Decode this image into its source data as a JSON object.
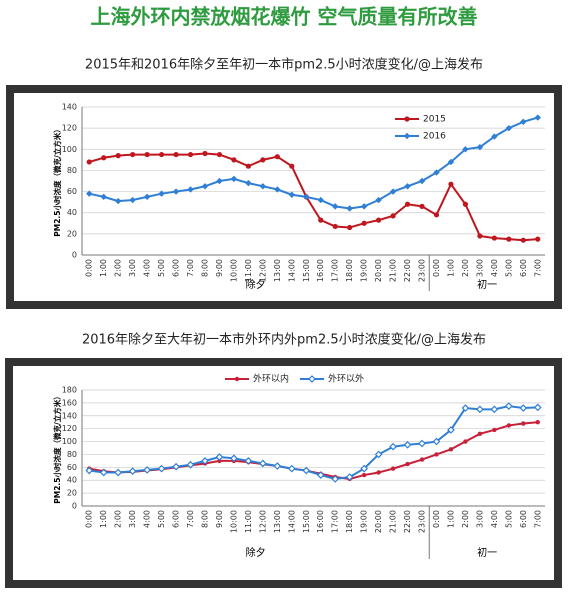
{
  "title": "上海外环内禁放烟花爆竹 空气质量有所改善",
  "chart_data": [
    {
      "type": "line",
      "title": "2015年和2016年除夕至年初一本市pm2.5小时浓度变化/@上海发布",
      "y_label": "PM2.5小时浓度（微克/立方米）",
      "categories": [
        "0:00",
        "1:00",
        "2:00",
        "3:00",
        "4:00",
        "5:00",
        "6:00",
        "7:00",
        "8:00",
        "9:00",
        "10:00",
        "11:00",
        "12:00",
        "13:00",
        "14:00",
        "15:00",
        "16:00",
        "17:00",
        "18:00",
        "19:00",
        "20:00",
        "21:00",
        "22:00",
        "23:00",
        "0:00",
        "1:00",
        "2:00",
        "3:00",
        "4:00",
        "5:00",
        "6:00",
        "7:00"
      ],
      "groups": [
        "除夕",
        "初一"
      ],
      "series": [
        {
          "name": "2015",
          "color": "#c0171f",
          "values": [
            88,
            92,
            94,
            95,
            95,
            95,
            95,
            95,
            96,
            95,
            90,
            84,
            90,
            93,
            84,
            55,
            33,
            27,
            26,
            30,
            33,
            37,
            48,
            46,
            38,
            67,
            48,
            18,
            16,
            15,
            14,
            15
          ]
        },
        {
          "name": "2016",
          "color": "#2f7fd6",
          "values": [
            58,
            55,
            51,
            52,
            55,
            58,
            60,
            62,
            65,
            70,
            72,
            68,
            65,
            62,
            57,
            55,
            52,
            46,
            44,
            46,
            52,
            60,
            65,
            70,
            78,
            88,
            100,
            102,
            112,
            120,
            126,
            130
          ]
        }
      ],
      "ylim": [
        0,
        140
      ],
      "yticks": [
        0,
        20,
        40,
        60,
        80,
        100,
        120,
        140
      ],
      "legend": "upper right",
      "grid": true
    },
    {
      "type": "line",
      "title": "2016年除夕至大年初一本市外环内外pm2.5小时浓度变化/@上海发布",
      "y_label": "PM2.5小时浓度（微克/立方米）",
      "categories": [
        "0:00",
        "1:00",
        "2:00",
        "3:00",
        "4:00",
        "5:00",
        "6:00",
        "7:00",
        "8:00",
        "9:00",
        "10:00",
        "11:00",
        "12:00",
        "13:00",
        "14:00",
        "15:00",
        "16:00",
        "17:00",
        "18:00",
        "19:00",
        "20:00",
        "21:00",
        "22:00",
        "23:00",
        "0:00",
        "1:00",
        "2:00",
        "3:00",
        "4:00",
        "5:00",
        "6:00",
        "7:00"
      ],
      "groups": [
        "除夕",
        "初一"
      ],
      "series": [
        {
          "name": "外环以内",
          "color": "#c9203a",
          "values": [
            58,
            54,
            52,
            53,
            55,
            57,
            60,
            63,
            66,
            70,
            70,
            68,
            65,
            62,
            58,
            55,
            50,
            45,
            42,
            48,
            52,
            58,
            65,
            72,
            80,
            88,
            100,
            112,
            118,
            125,
            128,
            130
          ]
        },
        {
          "name": "外环以外",
          "color": "#2f7fd6",
          "values": [
            55,
            52,
            52,
            54,
            56,
            58,
            61,
            64,
            70,
            76,
            74,
            70,
            66,
            62,
            58,
            55,
            48,
            42,
            45,
            58,
            80,
            92,
            95,
            97,
            100,
            118,
            152,
            150,
            150,
            155,
            152,
            153
          ]
        }
      ],
      "ylim": [
        0,
        180
      ],
      "yticks": [
        0,
        20,
        40,
        60,
        80,
        100,
        120,
        140,
        160,
        180
      ],
      "legend": "upper center",
      "grid": true
    }
  ]
}
